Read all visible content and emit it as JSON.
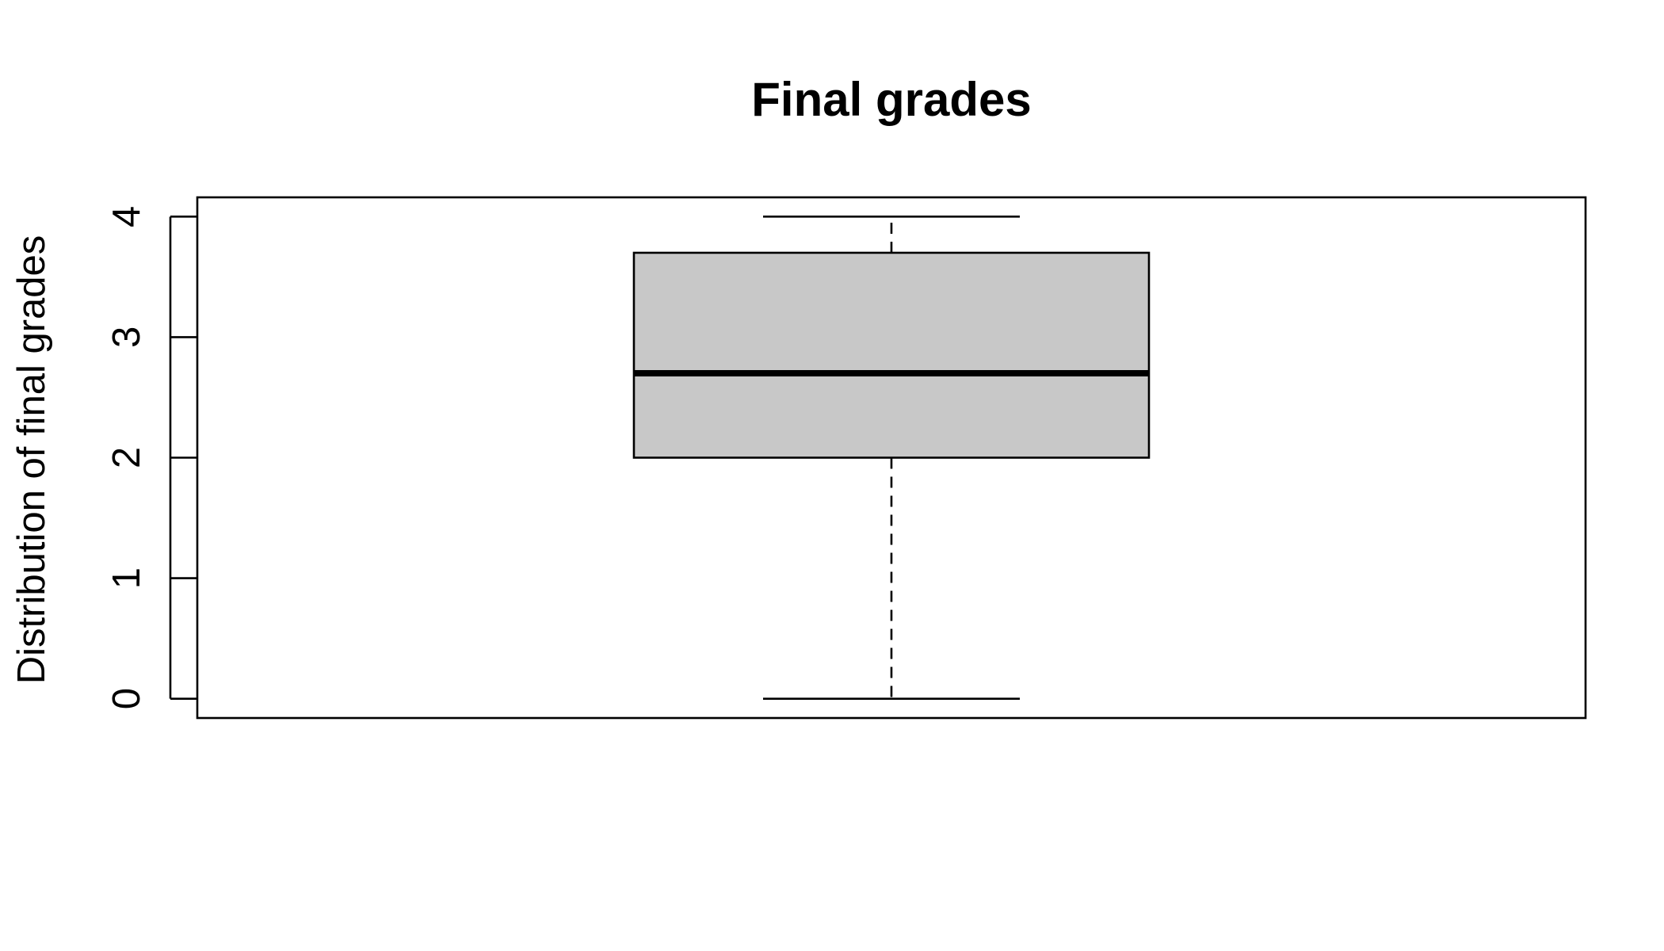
{
  "chart_data": {
    "type": "boxplot",
    "title": "Final grades",
    "xlabel": "",
    "ylabel": "Distribution of final grades",
    "ylim": [
      -0.16,
      4.16
    ],
    "yticks": [
      0,
      1,
      2,
      3,
      4
    ],
    "ytick_labels": [
      "0",
      "1",
      "2",
      "3",
      "4"
    ],
    "grid": false,
    "legend": "none",
    "series": [
      {
        "min": 0,
        "q1": 2,
        "median": 2.7,
        "q3": 3.7,
        "max": 4
      }
    ],
    "colors": {
      "box_fill": "#c8c8c8",
      "stroke": "#000000",
      "background": "#ffffff"
    }
  }
}
